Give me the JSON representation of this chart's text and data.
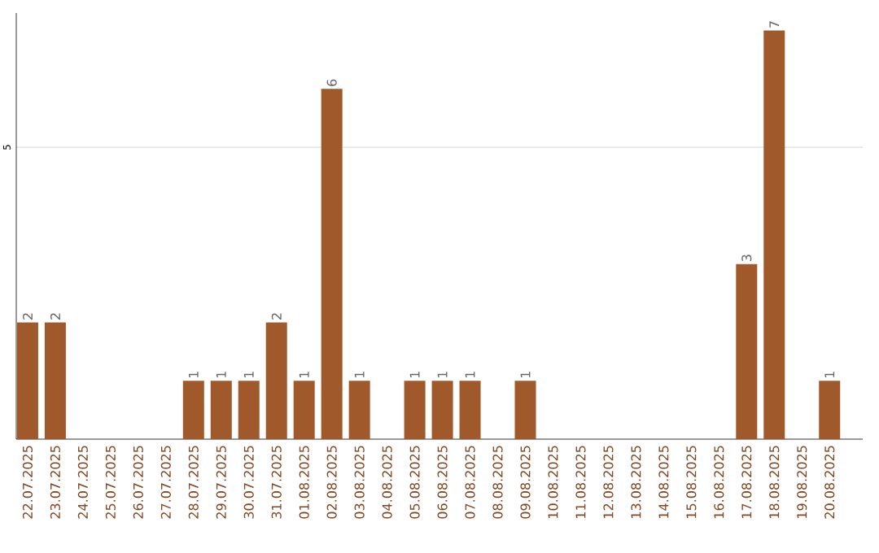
{
  "chart_data": {
    "type": "bar",
    "categories": [
      "22.07.2025",
      "23.07.2025",
      "24.07.2025",
      "25.07.2025",
      "26.07.2025",
      "27.07.2025",
      "28.07.2025",
      "29.07.2025",
      "30.07.2025",
      "31.07.2025",
      "01.08.2025",
      "02.08.2025",
      "03.08.2025",
      "04.08.2025",
      "05.08.2025",
      "06.08.2025",
      "07.08.2025",
      "08.08.2025",
      "09.08.2025",
      "10.08.2025",
      "11.08.2025",
      "12.08.2025",
      "13.08.2025",
      "14.08.2025",
      "15.08.2025",
      "16.08.2025",
      "17.08.2025",
      "18.08.2025",
      "19.08.2025",
      "20.08.2025"
    ],
    "values": [
      2,
      2,
      0,
      0,
      0,
      0,
      1,
      1,
      1,
      2,
      1,
      6,
      1,
      0,
      1,
      1,
      1,
      0,
      1,
      0,
      0,
      0,
      0,
      0,
      0,
      0,
      3,
      7,
      0,
      1
    ],
    "value_labels": [
      "2",
      "2",
      null,
      null,
      null,
      null,
      "1",
      "1",
      "1",
      "2",
      "1",
      "6",
      "1",
      null,
      "1",
      "1",
      "1",
      null,
      "1",
      null,
      null,
      null,
      null,
      null,
      null,
      null,
      "3",
      "7",
      null,
      "1"
    ],
    "color": "#a0592a",
    "ylim": [
      0,
      7.3
    ],
    "yticks": [
      5
    ],
    "grid": "y"
  }
}
